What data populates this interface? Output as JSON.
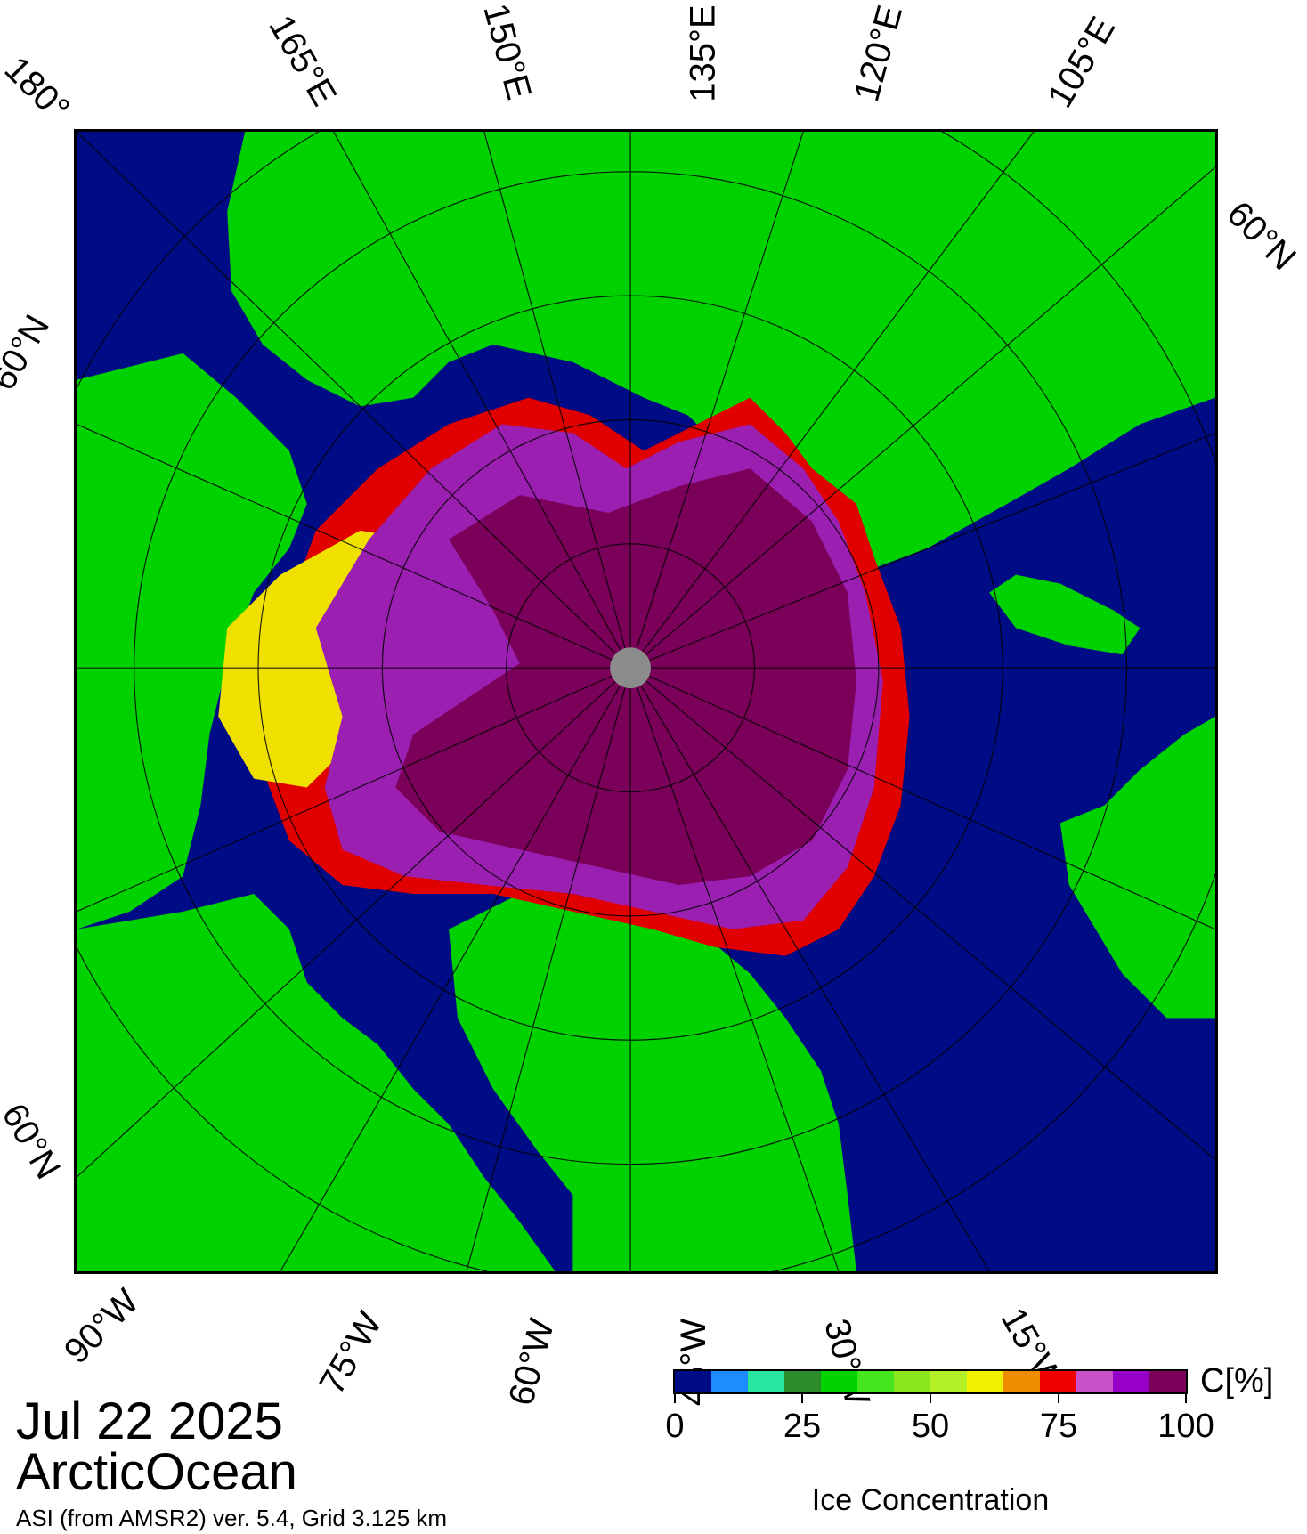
{
  "map": {
    "date": "Jul 22 2025",
    "region": "ArcticOcean",
    "source": "ASI (from AMSR2) ver. 5.4,  Grid 3.125 km",
    "colors": {
      "ocean": "#000c85",
      "land": "#00d200",
      "ice_full": "#7a005a",
      "ice_high": "#9b1fb0",
      "ice_mid": "#e00000",
      "ice_low": "#f0e000",
      "pole_hole": "#8c8c8c"
    },
    "graticule_labels": {
      "top": [
        "180°",
        "165°E",
        "150°E",
        "135°E",
        "120°E",
        "105°E"
      ],
      "right": [
        "60°N"
      ],
      "left": [
        "60°N",
        "60°N"
      ],
      "bottom": [
        "90°W",
        "75°W",
        "60°W",
        "45°W",
        "30°W",
        "15°W"
      ]
    }
  },
  "legend": {
    "unit": "C[%]",
    "title": "Ice Concentration",
    "ticks": [
      "0",
      "25",
      "50",
      "75",
      "100"
    ],
    "colors": [
      "#000c85",
      "#1e8cff",
      "#28e6a0",
      "#2a8c2a",
      "#00d200",
      "#46e61e",
      "#8ce61e",
      "#b4f028",
      "#f0f000",
      "#f08c00",
      "#f00000",
      "#c850c8",
      "#9600c8",
      "#7a005a"
    ]
  }
}
